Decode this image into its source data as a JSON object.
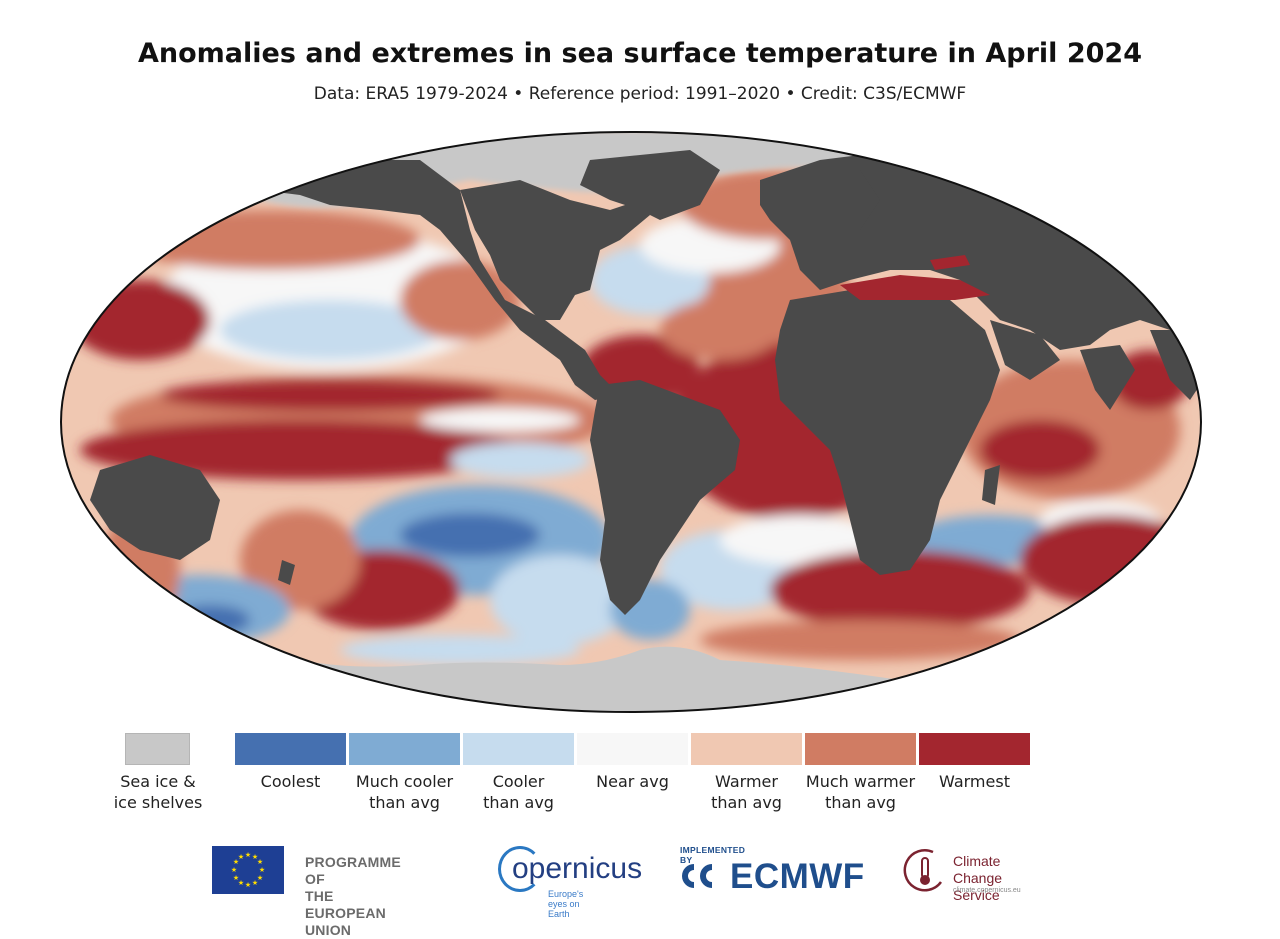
{
  "title": "Anomalies and extremes in sea surface temperature in April 2024",
  "subtitle": "Data: ERA5 1979-2024 • Reference period: 1991–2020 • Credit: C3S/ECMWF",
  "map": {
    "projection": "Robinson (world)",
    "land_color": "#4a4a4a",
    "ice_color": "#c8c8c8"
  },
  "legend": {
    "sea_ice": {
      "label": "Sea ice &\nice shelves",
      "color": "#c8c8c8"
    },
    "categories": [
      {
        "label": "Coolest",
        "color": "#4570b0"
      },
      {
        "label": "Much cooler\nthan avg",
        "color": "#7fabd3"
      },
      {
        "label": "Cooler\nthan avg",
        "color": "#c6dcee"
      },
      {
        "label": "Near avg",
        "color": "#f7f7f7"
      },
      {
        "label": "Warmer\nthan avg",
        "color": "#f0c8b2"
      },
      {
        "label": "Much warmer\nthan avg",
        "color": "#d07c63"
      },
      {
        "label": "Warmest",
        "color": "#a3262f"
      }
    ]
  },
  "logos": {
    "eu": "PROGRAMME OF\nTHE EUROPEAN UNION",
    "copernicus": "opernicus",
    "copernicus_tagline": "Europe's eyes on Earth",
    "ecmwf_small": "IMPLEMENTED BY",
    "ecmwf": "ECMWF",
    "c3s": "Climate\nChange Service",
    "c3s_url": "climate.copernicus.eu"
  }
}
